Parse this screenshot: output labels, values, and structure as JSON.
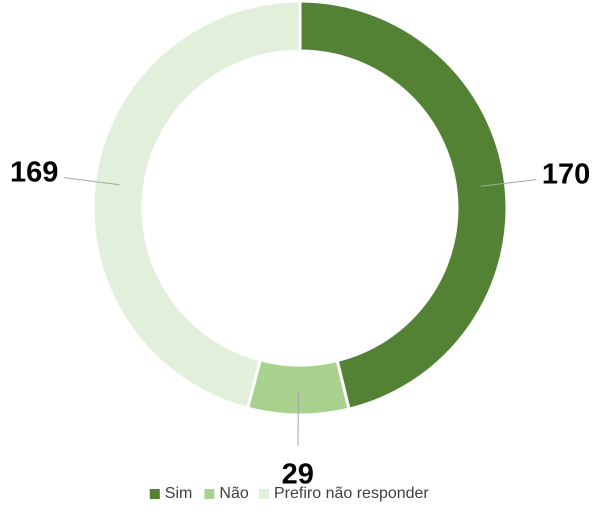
{
  "chart_data": {
    "type": "donut",
    "categories": [
      "Sim",
      "Não",
      "Prefiro não responder"
    ],
    "values": [
      170,
      29,
      169
    ],
    "colors": [
      "#548235",
      "#a9d18e",
      "#e2efda"
    ],
    "legend": "bottom"
  }
}
